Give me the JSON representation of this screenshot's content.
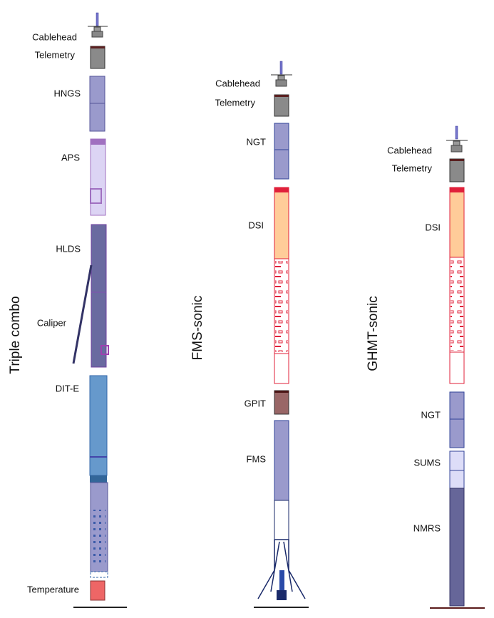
{
  "strings": [
    {
      "name": "Triple combo",
      "tools": [
        "Cablehead",
        "Telemetry",
        "HNGS",
        "APS",
        "HLDS",
        "Caliper",
        "DIT-E",
        "Temperature"
      ]
    },
    {
      "name": "FMS-sonic",
      "tools": [
        "Cablehead",
        "Telemetry",
        "NGT",
        "DSI",
        "GPIT",
        "FMS"
      ]
    },
    {
      "name": "GHMT-sonic",
      "tools": [
        "Cablehead",
        "Telemetry",
        "DSI",
        "NGT",
        "SUMS",
        "NMRS"
      ]
    }
  ]
}
